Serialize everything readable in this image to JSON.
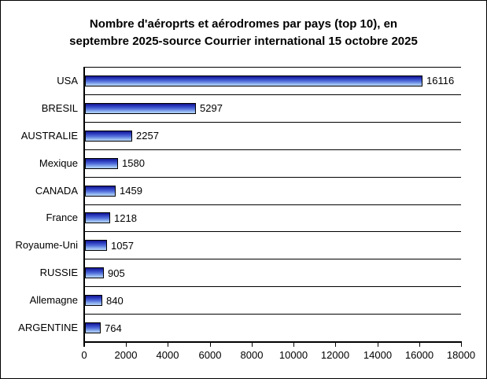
{
  "window": {
    "background_color": "#ffffff",
    "border_color": "#000000"
  },
  "chart_data": {
    "type": "bar",
    "orientation": "horizontal",
    "title_line1": "Nombre d'aéroprts et aérodromes par pays (top 10), en",
    "title_line2": "septembre 2025-source Courrier international 15 octobre 2025",
    "categories": [
      "USA",
      "BRESIL",
      "AUSTRALIE",
      "Mexique",
      "CANADA",
      "France",
      "Royaume-Uni",
      "RUSSIE",
      "Allemagne",
      "ARGENTINE"
    ],
    "values": [
      16116,
      5297,
      2257,
      1580,
      1459,
      1218,
      1057,
      905,
      840,
      764
    ],
    "data_labels": [
      "16116",
      "5297",
      "2257",
      "1580",
      "1459",
      "1218",
      "1057",
      "905",
      "840",
      "764"
    ],
    "xlabel": "",
    "ylabel": "",
    "xlim": [
      0,
      18000
    ],
    "x_ticks": [
      0,
      2000,
      4000,
      6000,
      8000,
      10000,
      12000,
      14000,
      16000,
      18000
    ],
    "grid": "horizontal-category-separators",
    "legend": "none",
    "axis_color": "#000000",
    "text_color": "#000000",
    "bar_border_color": "#000000",
    "bar_gradient": [
      "#14148e",
      "#2b3cbe",
      "#5673dc",
      "#8fb2ee",
      "#b6d6f8"
    ]
  }
}
